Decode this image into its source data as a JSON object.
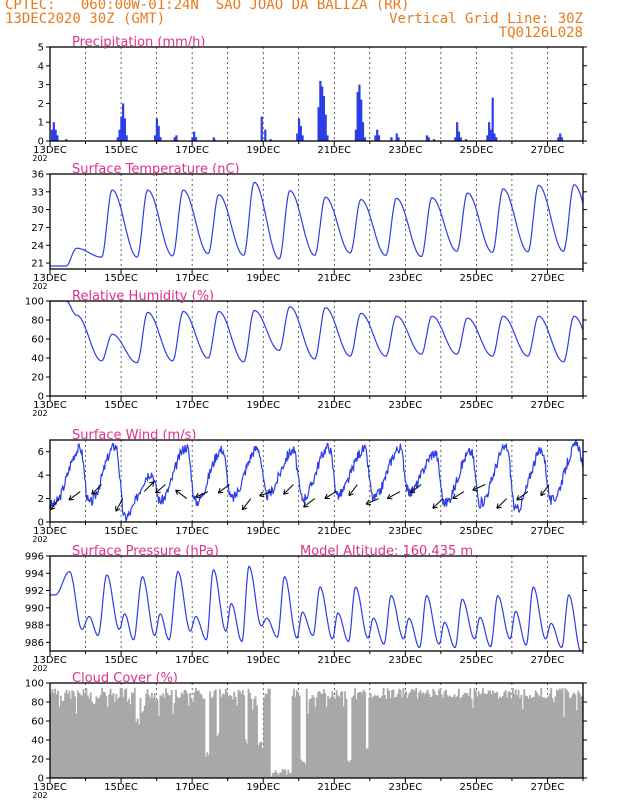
{
  "header": {
    "line1_left": "CPTEC:   060:00W-01:24N  SAO JOAO DA BALIZA (RR)",
    "line2_left": "13DEC2020 30Z (GMT)",
    "line2_right": "Vertical Grid Line: 30Z",
    "line3_right": "TQ0126L028"
  },
  "colors": {
    "header": "#e87a1e",
    "title": "#e0308c",
    "series": "#2b3ee8",
    "cloud": "#a8a8a8"
  },
  "x_tick_labels": [
    "13DEC",
    "15DEC",
    "17DEC",
    "19DEC",
    "21DEC",
    "23DEC",
    "25DEC",
    "27DEC"
  ],
  "x_tick_sublabel": "202",
  "chart_data": [
    {
      "type": "bar",
      "title": "Precipitation (mm/h)",
      "ylim": [
        0,
        5
      ],
      "yticks": [
        0,
        1,
        2,
        3,
        4,
        5
      ],
      "xlim_days": [
        0,
        15
      ],
      "spikes": [
        [
          0.05,
          0.6
        ],
        [
          0.1,
          1.0
        ],
        [
          0.15,
          0.6
        ],
        [
          0.2,
          0.3
        ],
        [
          0.45,
          0.1
        ],
        [
          1.9,
          0.2
        ],
        [
          1.95,
          0.6
        ],
        [
          2.0,
          1.3
        ],
        [
          2.05,
          2.0
        ],
        [
          2.1,
          1.2
        ],
        [
          2.15,
          0.3
        ],
        [
          2.95,
          0.3
        ],
        [
          3.0,
          1.2
        ],
        [
          3.05,
          0.8
        ],
        [
          3.1,
          0.2
        ],
        [
          3.5,
          0.2
        ],
        [
          3.55,
          0.3
        ],
        [
          4.0,
          0.2
        ],
        [
          4.05,
          0.5
        ],
        [
          4.1,
          0.2
        ],
        [
          4.6,
          0.2
        ],
        [
          4.62,
          0.1
        ],
        [
          5.95,
          1.3
        ],
        [
          6.05,
          0.6
        ],
        [
          6.2,
          0.1
        ],
        [
          6.95,
          0.4
        ],
        [
          7.0,
          1.2
        ],
        [
          7.05,
          0.8
        ],
        [
          7.1,
          0.3
        ],
        [
          7.55,
          1.8
        ],
        [
          7.6,
          3.2
        ],
        [
          7.65,
          2.9
        ],
        [
          7.7,
          2.4
        ],
        [
          7.75,
          1.4
        ],
        [
          7.8,
          0.3
        ],
        [
          8.6,
          0.6
        ],
        [
          8.65,
          2.6
        ],
        [
          8.7,
          3.0
        ],
        [
          8.75,
          2.2
        ],
        [
          8.8,
          1.0
        ],
        [
          8.85,
          0.2
        ],
        [
          9.15,
          0.3
        ],
        [
          9.2,
          0.6
        ],
        [
          9.25,
          0.3
        ],
        [
          9.6,
          0.2
        ],
        [
          9.75,
          0.4
        ],
        [
          9.8,
          0.2
        ],
        [
          10.6,
          0.3
        ],
        [
          10.65,
          0.2
        ],
        [
          10.8,
          0.1
        ],
        [
          11.4,
          0.2
        ],
        [
          11.45,
          1.0
        ],
        [
          11.5,
          0.5
        ],
        [
          11.55,
          0.2
        ],
        [
          11.7,
          0.1
        ],
        [
          12.3,
          0.3
        ],
        [
          12.35,
          1.0
        ],
        [
          12.4,
          0.6
        ],
        [
          12.45,
          2.3
        ],
        [
          12.5,
          0.4
        ],
        [
          12.55,
          0.2
        ],
        [
          14.3,
          0.2
        ],
        [
          14.35,
          0.4
        ],
        [
          14.4,
          0.2
        ]
      ]
    },
    {
      "type": "line",
      "title": "Surface Temperature (nC)",
      "ylim": [
        20,
        36
      ],
      "yticks": [
        21,
        24,
        27,
        30,
        33,
        36
      ],
      "xlim_days": [
        0,
        15
      ],
      "min_hour": 0.45,
      "max_hour": 0.75,
      "extrema": [
        [
          23.5,
          20.5
        ],
        [
          33.3,
          22.0
        ],
        [
          33.3,
          22.0
        ],
        [
          33.3,
          22.2
        ],
        [
          32.5,
          22.6
        ],
        [
          34.6,
          22.3
        ],
        [
          33.2,
          21.7
        ],
        [
          32.1,
          22.3
        ],
        [
          31.7,
          22.7
        ],
        [
          31.9,
          22.3
        ],
        [
          32.0,
          22.1
        ],
        [
          32.8,
          23.0
        ],
        [
          33.5,
          22.8
        ],
        [
          34.1,
          22.9
        ],
        [
          34.2,
          23.0
        ],
        [
          35.0,
          23.0
        ]
      ]
    },
    {
      "type": "line",
      "title": "Relative Humidity (%)",
      "ylim": [
        0,
        100
      ],
      "yticks": [
        0,
        20,
        40,
        60,
        80,
        100
      ],
      "xlim_days": [
        0,
        15
      ],
      "min_hour": 0.75,
      "max_hour": 0.45,
      "extrema": [
        [
          100,
          85
        ],
        [
          37,
          65
        ],
        [
          35,
          88
        ],
        [
          37,
          89
        ],
        [
          40,
          89
        ],
        [
          36,
          90
        ],
        [
          48,
          94
        ],
        [
          39,
          93
        ],
        [
          42,
          87
        ],
        [
          42,
          84
        ],
        [
          44,
          84
        ],
        [
          44,
          82
        ],
        [
          42,
          84
        ],
        [
          42,
          84
        ],
        [
          36,
          84
        ],
        [
          32,
          60
        ]
      ]
    },
    {
      "type": "line",
      "title": "Surface Wind (m/s)",
      "ylim": [
        0,
        7
      ],
      "yticks": [
        0,
        2,
        4,
        6
      ],
      "xlim_days": [
        0,
        15
      ],
      "min_hour": 0.1,
      "max_hour": 0.85,
      "extrema": [
        [
          6.3,
          1.5
        ],
        [
          6.5,
          1.6
        ],
        [
          4.2,
          0.4
        ],
        [
          6.4,
          1.8
        ],
        [
          6.2,
          1.7
        ],
        [
          6.3,
          2.0
        ],
        [
          6.1,
          2.3
        ],
        [
          6.4,
          2.0
        ],
        [
          6.2,
          2.3
        ],
        [
          6.3,
          2.0
        ],
        [
          5.9,
          2.5
        ],
        [
          6.0,
          1.6
        ],
        [
          6.4,
          1.6
        ],
        [
          6.1,
          1.0
        ],
        [
          6.6,
          1.8
        ],
        [
          3.0,
          3.0
        ]
      ],
      "vectors_dx_dy": [
        [
          -0.6,
          -0.8
        ],
        [
          -0.8,
          -0.6
        ],
        [
          -0.7,
          -0.7
        ],
        [
          -0.5,
          -0.9
        ],
        [
          0.7,
          0.7
        ],
        [
          -0.7,
          -0.6
        ],
        [
          -0.8,
          0.6
        ],
        [
          -0.9,
          -0.4
        ],
        [
          -0.8,
          -0.6
        ],
        [
          -0.6,
          -0.8
        ],
        [
          -0.9,
          -0.3
        ],
        [
          -0.7,
          -0.7
        ],
        [
          -0.8,
          -0.6
        ],
        [
          -0.8,
          -0.5
        ],
        [
          -0.6,
          -0.8
        ],
        [
          -0.9,
          -0.4
        ],
        [
          -0.9,
          -0.5
        ],
        [
          -0.8,
          -0.6
        ],
        [
          -0.7,
          -0.7
        ],
        [
          -0.8,
          -0.5
        ],
        [
          -0.9,
          -0.4
        ],
        [
          -0.7,
          -0.7
        ],
        [
          -0.8,
          -0.6
        ],
        [
          -0.6,
          -0.8
        ]
      ]
    },
    {
      "type": "line",
      "title": "Surface Pressure (hPa)",
      "annotation": "Model Altitude: 160.435  m",
      "ylim": [
        985,
        996
      ],
      "yticks": [
        986,
        988,
        990,
        992,
        994,
        996
      ],
      "xlim_days": [
        0,
        15
      ],
      "daily": [
        [
          0.15,
          991.5
        ],
        [
          0.55,
          994.2
        ],
        [
          0.9,
          987.5
        ],
        [
          1.1,
          989
        ],
        [
          1.35,
          986.8
        ],
        [
          1.6,
          993.8
        ],
        [
          1.95,
          987.5
        ],
        [
          2.1,
          989.3
        ],
        [
          2.35,
          986.3
        ],
        [
          2.6,
          993.6
        ],
        [
          2.95,
          986.8
        ],
        [
          3.1,
          989.3
        ],
        [
          3.35,
          986.3
        ],
        [
          3.6,
          994.2
        ],
        [
          3.95,
          987.3
        ],
        [
          4.1,
          989
        ],
        [
          4.4,
          986.3
        ],
        [
          4.6,
          994.4
        ],
        [
          4.95,
          987.3
        ],
        [
          5.1,
          990.5
        ],
        [
          5.4,
          986.1
        ],
        [
          5.6,
          994.8
        ],
        [
          5.95,
          987.9
        ],
        [
          6.1,
          988.8
        ],
        [
          6.4,
          986.6
        ],
        [
          6.6,
          993.6
        ],
        [
          6.95,
          986.5
        ],
        [
          7.1,
          989.5
        ],
        [
          7.4,
          986.8
        ],
        [
          7.6,
          992.4
        ],
        [
          7.95,
          986.4
        ],
        [
          8.1,
          989.4
        ],
        [
          8.4,
          986.1
        ],
        [
          8.6,
          992.4
        ],
        [
          8.95,
          986.5
        ],
        [
          9.1,
          988.8
        ],
        [
          9.4,
          985.8
        ],
        [
          9.6,
          991.4
        ],
        [
          9.95,
          986.4
        ],
        [
          10.1,
          988.8
        ],
        [
          10.4,
          985.4
        ],
        [
          10.6,
          991.4
        ],
        [
          10.95,
          985.8
        ],
        [
          11.1,
          988.3
        ],
        [
          11.4,
          985.4
        ],
        [
          11.6,
          991.0
        ],
        [
          11.95,
          986.4
        ],
        [
          12.1,
          988.9
        ],
        [
          12.4,
          985.5
        ],
        [
          12.6,
          991.4
        ],
        [
          12.95,
          986.4
        ],
        [
          13.1,
          989.6
        ],
        [
          13.4,
          985.7
        ],
        [
          13.6,
          992.4
        ],
        [
          13.95,
          986.4
        ],
        [
          14.1,
          988.2
        ],
        [
          14.4,
          985.4
        ],
        [
          14.6,
          991.5
        ],
        [
          14.95,
          984.9
        ]
      ]
    },
    {
      "type": "bar",
      "title": "Cloud Cover (%)",
      "ylim": [
        0,
        100
      ],
      "yticks": [
        0,
        20,
        40,
        60,
        80,
        100
      ],
      "xlim_days": [
        0,
        15
      ],
      "base_level": 95,
      "dips": [
        [
          0.3,
          0.15,
          80
        ],
        [
          1.2,
          0.1,
          75
        ],
        [
          1.8,
          0.2,
          80
        ],
        [
          2.2,
          0.15,
          82
        ],
        [
          2.45,
          0.1,
          55
        ],
        [
          2.6,
          0.1,
          65
        ],
        [
          3.0,
          0.15,
          75
        ],
        [
          3.6,
          0.1,
          82
        ],
        [
          4.0,
          0.12,
          80
        ],
        [
          4.4,
          0.1,
          20
        ],
        [
          4.7,
          0.1,
          40
        ],
        [
          5.1,
          0.15,
          82
        ],
        [
          5.5,
          0.1,
          35
        ],
        [
          5.9,
          0.18,
          30
        ],
        [
          6.5,
          0.6,
          0
        ],
        [
          7.1,
          0.15,
          10
        ],
        [
          7.3,
          0.1,
          80
        ],
        [
          7.9,
          0.15,
          85
        ],
        [
          8.4,
          0.15,
          10
        ],
        [
          8.9,
          0.1,
          30
        ],
        [
          9.0,
          0.5,
          88
        ],
        [
          10.4,
          0.1,
          88
        ],
        [
          12.6,
          0.15,
          85
        ]
      ]
    }
  ]
}
